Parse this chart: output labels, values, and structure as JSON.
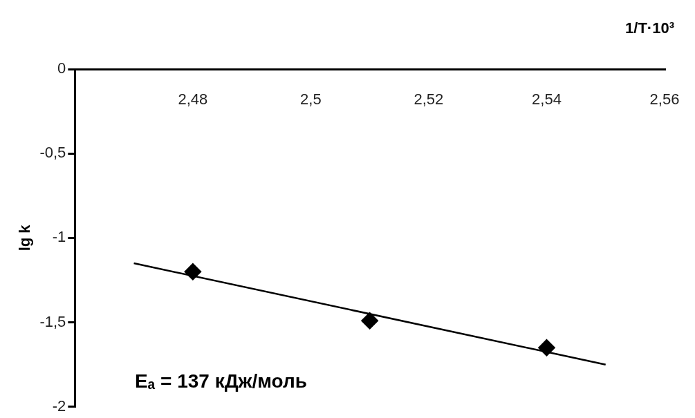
{
  "chart_data": {
    "type": "scatter",
    "xlabel": "1/T·10³",
    "ylabel": "lg k",
    "marker": "diamond",
    "grid": false,
    "legend": false,
    "xlim": [
      2.46,
      2.56
    ],
    "xticks": [
      {
        "value": 2.48,
        "label": "2,48"
      },
      {
        "value": 2.5,
        "label": "2,5"
      },
      {
        "value": 2.52,
        "label": "2,52"
      },
      {
        "value": 2.54,
        "label": "2,54"
      },
      {
        "value": 2.56,
        "label": "2,56"
      }
    ],
    "ylim": [
      -2,
      0
    ],
    "yticks": [
      {
        "value": 0,
        "label": "0"
      },
      {
        "value": -0.5,
        "label": "-0,5"
      },
      {
        "value": -1,
        "label": "-1"
      },
      {
        "value": -1.5,
        "label": "-1,5"
      },
      {
        "value": -2,
        "label": "-2"
      }
    ],
    "series": [
      {
        "color": "#000000",
        "x": [
          2.48,
          2.51,
          2.54
        ],
        "values": [
          -1.2,
          -1.49,
          -1.65
        ]
      },
      {
        "type": "line",
        "color": "#000000",
        "x": [
          2.47,
          2.55
        ],
        "values": [
          -1.15,
          -1.75
        ],
        "marker": "none",
        "line_style": "solid"
      }
    ],
    "annotations": [
      "Eₐ = 137 кДж/моль"
    ]
  }
}
